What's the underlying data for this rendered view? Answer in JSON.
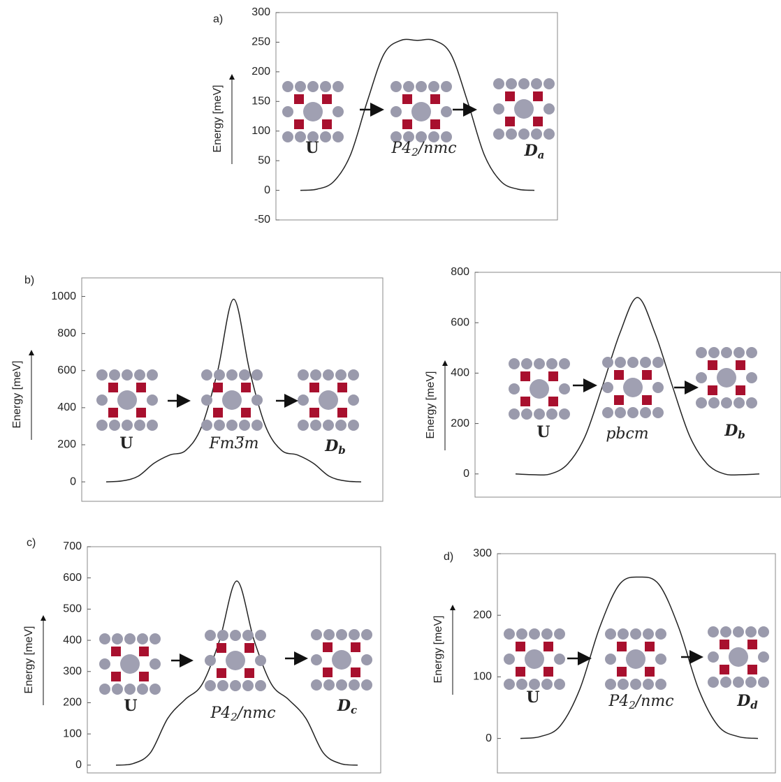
{
  "chart_data": [
    {
      "type": "line",
      "label": "a)",
      "ylabel": "Energy [meV]",
      "values": [
        0,
        2,
        15,
        60,
        150,
        230,
        253,
        253,
        253,
        230,
        150,
        60,
        15,
        2,
        0
      ],
      "ylim": [
        -50,
        300
      ],
      "yticks": [
        -50,
        0,
        50,
        100,
        150,
        200,
        250,
        300
      ],
      "color": "#222222",
      "annotations": [
        {
          "text": "U",
          "style": "bold"
        },
        {
          "text": "P4",
          "sub": "2",
          "after": "/nmc",
          "style": "italic"
        },
        {
          "text": "D",
          "sub": "a",
          "style": "bold-italic"
        }
      ]
    },
    {
      "type": "line",
      "label": "b)",
      "ylabel": "Energy [meV]",
      "values": [
        0,
        5,
        30,
        100,
        145,
        170,
        300,
        600,
        985,
        600,
        300,
        170,
        145,
        100,
        30,
        5,
        0
      ],
      "ylim": [
        -105,
        1100
      ],
      "yticks": [
        0,
        200,
        400,
        600,
        800,
        1000
      ],
      "color": "#222222",
      "annotations": [
        {
          "text": "U",
          "style": "bold"
        },
        {
          "text": "Fm3̅m",
          "style": "italic"
        },
        {
          "text": "D",
          "sub": "b",
          "style": "bold-italic"
        }
      ]
    },
    {
      "type": "line",
      "ylabel": "Energy [meV]",
      "values": [
        0,
        -3,
        0,
        40,
        150,
        350,
        560,
        700,
        560,
        350,
        150,
        40,
        0,
        -3,
        0
      ],
      "ylim": [
        -92,
        800
      ],
      "yticks": [
        0,
        200,
        400,
        600,
        800
      ],
      "color": "#222222",
      "annotations": [
        {
          "text": "U",
          "style": "bold"
        },
        {
          "text": "pbcm",
          "style": "italic"
        },
        {
          "text": "D",
          "sub": "b",
          "style": "bold-italic"
        }
      ]
    },
    {
      "type": "line",
      "label": "c)",
      "ylabel": "Energy [meV]",
      "values": [
        0,
        5,
        40,
        150,
        210,
        260,
        400,
        590,
        400,
        260,
        210,
        150,
        40,
        5,
        0
      ],
      "ylim": [
        -25,
        700
      ],
      "yticks": [
        0,
        100,
        200,
        300,
        400,
        500,
        600,
        700
      ],
      "color": "#222222",
      "annotations": [
        {
          "text": "U",
          "style": "bold"
        },
        {
          "text": "P4",
          "sub": "2",
          "after": "/nmc",
          "style": "italic"
        },
        {
          "text": "D",
          "sub": "c",
          "style": "bold-italic"
        }
      ]
    },
    {
      "type": "line",
      "label": "d)",
      "ylabel": "Energy [meV]",
      "values": [
        0,
        3,
        20,
        80,
        180,
        250,
        262,
        250,
        180,
        80,
        20,
        3,
        0
      ],
      "ylim": [
        -56,
        300
      ],
      "yticks": [
        0,
        100,
        200,
        300
      ],
      "color": "#222222",
      "annotations": [
        {
          "text": "U",
          "style": "bold"
        },
        {
          "text": "P4",
          "sub": "2",
          "after": "/nmc",
          "style": "italic"
        },
        {
          "text": "D",
          "sub": "d",
          "style": "bold-italic"
        }
      ]
    }
  ]
}
